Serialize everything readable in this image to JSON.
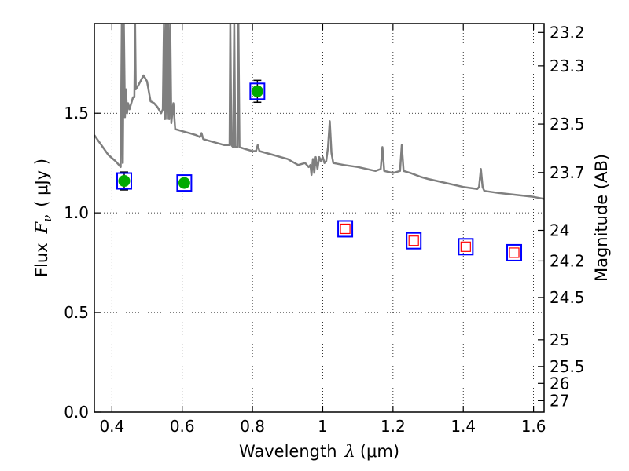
{
  "chart_data": {
    "type": "scatter",
    "xlabel": {
      "pre": "Wavelength",
      "symbol": "λ",
      "unit": "(μm)"
    },
    "ylabel": {
      "pre": "Flux",
      "symbol": "F",
      "sub": "ν",
      "unit": "( μJy )"
    },
    "y2label": "Magnitude (AB)",
    "xlim": [
      0.35,
      1.63
    ],
    "ylim": [
      0.0,
      1.95
    ],
    "grid": true,
    "x_ticks": [
      {
        "v": 0.4,
        "label": "0.4"
      },
      {
        "v": 0.6,
        "label": "0.6"
      },
      {
        "v": 0.8,
        "label": "0.8"
      },
      {
        "v": 1.0,
        "label": "1"
      },
      {
        "v": 1.2,
        "label": "1.2"
      },
      {
        "v": 1.4,
        "label": "1.4"
      },
      {
        "v": 1.6,
        "label": "1.6"
      }
    ],
    "y_ticks": [
      {
        "v": 0.0,
        "label": "0.0"
      },
      {
        "v": 0.5,
        "label": "0.5"
      },
      {
        "v": 1.0,
        "label": "1.0"
      },
      {
        "v": 1.5,
        "label": "1.5"
      }
    ],
    "y2_ticks": [
      {
        "v": 23.2,
        "label": "23.2"
      },
      {
        "v": 23.3,
        "label": "23.3"
      },
      {
        "v": 23.5,
        "label": "23.5"
      },
      {
        "v": 23.7,
        "label": "23.7"
      },
      {
        "v": 24,
        "label": "24"
      },
      {
        "v": 24.2,
        "label": "24.2"
      },
      {
        "v": 24.5,
        "label": "24.5"
      },
      {
        "v": 25,
        "label": "25"
      },
      {
        "v": 25.5,
        "label": "25.5"
      },
      {
        "v": 26,
        "label": "26"
      },
      {
        "v": 27,
        "label": "27"
      }
    ],
    "spectrum": {
      "color": "#7f7f7f",
      "points": [
        [
          0.35,
          1.39
        ],
        [
          0.37,
          1.34
        ],
        [
          0.39,
          1.29
        ],
        [
          0.41,
          1.26
        ],
        [
          0.42,
          1.24
        ],
        [
          0.425,
          1.23
        ],
        [
          0.428,
          1.95
        ],
        [
          0.431,
          1.25
        ],
        [
          0.434,
          1.95
        ],
        [
          0.437,
          1.48
        ],
        [
          0.44,
          1.62
        ],
        [
          0.443,
          1.5
        ],
        [
          0.446,
          1.55
        ],
        [
          0.45,
          1.52
        ],
        [
          0.46,
          1.58
        ],
        [
          0.464,
          1.58
        ],
        [
          0.466,
          1.95
        ],
        [
          0.468,
          1.62
        ],
        [
          0.475,
          1.64
        ],
        [
          0.49,
          1.69
        ],
        [
          0.5,
          1.66
        ],
        [
          0.51,
          1.56
        ],
        [
          0.52,
          1.55
        ],
        [
          0.53,
          1.53
        ],
        [
          0.54,
          1.5
        ],
        [
          0.545,
          1.52
        ],
        [
          0.548,
          1.95
        ],
        [
          0.551,
          1.47
        ],
        [
          0.554,
          1.95
        ],
        [
          0.557,
          1.47
        ],
        [
          0.56,
          1.95
        ],
        [
          0.563,
          1.47
        ],
        [
          0.566,
          1.95
        ],
        [
          0.569,
          1.45
        ],
        [
          0.575,
          1.55
        ],
        [
          0.58,
          1.42
        ],
        [
          0.6,
          1.41
        ],
        [
          0.62,
          1.4
        ],
        [
          0.64,
          1.39
        ],
        [
          0.65,
          1.38
        ],
        [
          0.655,
          1.4
        ],
        [
          0.66,
          1.37
        ],
        [
          0.68,
          1.36
        ],
        [
          0.7,
          1.35
        ],
        [
          0.72,
          1.34
        ],
        [
          0.735,
          1.34
        ],
        [
          0.737,
          1.95
        ],
        [
          0.74,
          1.34
        ],
        [
          0.745,
          1.33
        ],
        [
          0.748,
          1.95
        ],
        [
          0.751,
          1.33
        ],
        [
          0.757,
          1.33
        ],
        [
          0.76,
          1.95
        ],
        [
          0.763,
          1.33
        ],
        [
          0.78,
          1.32
        ],
        [
          0.8,
          1.31
        ],
        [
          0.81,
          1.31
        ],
        [
          0.815,
          1.34
        ],
        [
          0.82,
          1.31
        ],
        [
          0.84,
          1.3
        ],
        [
          0.86,
          1.29
        ],
        [
          0.88,
          1.28
        ],
        [
          0.9,
          1.27
        ],
        [
          0.91,
          1.26
        ],
        [
          0.93,
          1.24
        ],
        [
          0.95,
          1.25
        ],
        [
          0.96,
          1.23
        ],
        [
          0.965,
          1.24
        ],
        [
          0.968,
          1.19
        ],
        [
          0.972,
          1.27
        ],
        [
          0.976,
          1.2
        ],
        [
          0.98,
          1.28
        ],
        [
          0.985,
          1.22
        ],
        [
          0.99,
          1.28
        ],
        [
          0.995,
          1.26
        ],
        [
          1.0,
          1.28
        ],
        [
          1.005,
          1.25
        ],
        [
          1.01,
          1.26
        ],
        [
          1.015,
          1.33
        ],
        [
          1.02,
          1.46
        ],
        [
          1.025,
          1.3
        ],
        [
          1.03,
          1.25
        ],
        [
          1.06,
          1.24
        ],
        [
          1.1,
          1.23
        ],
        [
          1.15,
          1.21
        ],
        [
          1.165,
          1.22
        ],
        [
          1.17,
          1.33
        ],
        [
          1.175,
          1.21
        ],
        [
          1.2,
          1.2
        ],
        [
          1.22,
          1.21
        ],
        [
          1.225,
          1.34
        ],
        [
          1.23,
          1.21
        ],
        [
          1.25,
          1.2
        ],
        [
          1.28,
          1.18
        ],
        [
          1.3,
          1.17
        ],
        [
          1.35,
          1.15
        ],
        [
          1.4,
          1.13
        ],
        [
          1.44,
          1.12
        ],
        [
          1.445,
          1.13
        ],
        [
          1.45,
          1.22
        ],
        [
          1.455,
          1.13
        ],
        [
          1.46,
          1.11
        ],
        [
          1.5,
          1.1
        ],
        [
          1.55,
          1.09
        ],
        [
          1.6,
          1.08
        ],
        [
          1.63,
          1.07
        ]
      ]
    },
    "series": [
      {
        "marker": "filled-circle",
        "color": "#00aa00",
        "points": [
          {
            "x": 0.435,
            "y": 1.16,
            "err": 0.045
          },
          {
            "x": 0.606,
            "y": 1.15,
            "err": 0.0
          },
          {
            "x": 0.814,
            "y": 1.61,
            "err": 0.055
          }
        ]
      },
      {
        "marker": "open-square",
        "color": "#ff0000",
        "points": [
          {
            "x": 1.064,
            "y": 0.92
          },
          {
            "x": 1.259,
            "y": 0.86
          },
          {
            "x": 1.407,
            "y": 0.83
          },
          {
            "x": 1.545,
            "y": 0.8
          }
        ]
      }
    ],
    "outline_box_color": "#0000ff"
  }
}
